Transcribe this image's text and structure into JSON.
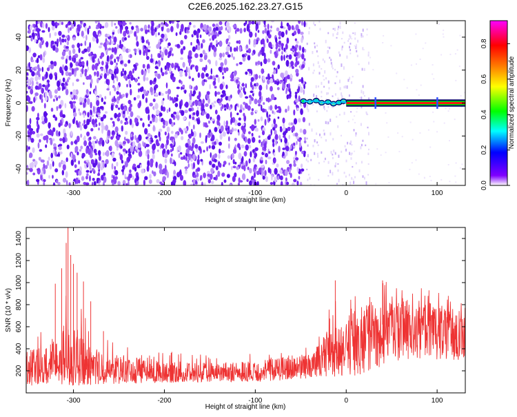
{
  "title": "C2E6.2025.162.23.27.G15",
  "chart_data": [
    {
      "type": "heatmap",
      "xlabel": "Height of straight line (km)",
      "ylabel": "Frequency (Hz)",
      "xlim": [
        -352,
        131
      ],
      "ylim": [
        -50,
        50
      ],
      "xticks": [
        -300,
        -200,
        -100,
        0,
        100
      ],
      "yticks": [
        -40,
        -20,
        0,
        20,
        40
      ],
      "grid": false,
      "noise_region_x": [
        -352,
        -45
      ],
      "signal_trace": {
        "x": [
          -47,
          -40,
          -33,
          -27,
          -20,
          -14,
          -8,
          -3,
          0,
          130
        ],
        "y": [
          1.2,
          0.8,
          1.5,
          0.2,
          0.6,
          -0.4,
          0.3,
          1.1,
          0.0,
          0.0
        ]
      },
      "colorbar": {
        "label": "Normalized spectral amplitude",
        "range": [
          0,
          0.93
        ],
        "ticks": [
          0.0,
          0.2,
          0.4,
          0.6,
          0.8
        ],
        "tick_labels": [
          "0.0",
          "0.2",
          "0.4",
          "0.6",
          "0.8"
        ],
        "colormap": [
          "#ffffff",
          "#8000ff",
          "#0000ff",
          "#00ffff",
          "#00ff00",
          "#ffff00",
          "#ff8000",
          "#ff0000",
          "#ff00ff"
        ]
      }
    },
    {
      "type": "line",
      "xlabel": "Height of straight line (km)",
      "ylabel": "SNR (10 * v/v)",
      "xlim": [
        -352,
        131
      ],
      "ylim": [
        0,
        1500
      ],
      "xticks": [
        -300,
        -200,
        -100,
        0,
        100
      ],
      "yticks": [
        200,
        400,
        600,
        800,
        1000,
        1200,
        1400
      ],
      "grid": false,
      "series": [
        {
          "color": "#ee3333",
          "envelope": {
            "x": [
              -352,
              -330,
              -310,
              -290,
              -270,
              -250,
              -200,
              -150,
              -100,
              -50,
              -30,
              -20,
              -10,
              0,
              20,
              40,
              60,
              80,
              100,
              131
            ],
            "low": [
              60,
              80,
              70,
              60,
              80,
              80,
              90,
              100,
              100,
              120,
              150,
              140,
              120,
              110,
              160,
              250,
              290,
              300,
              300,
              300
            ],
            "typical": [
              190,
              210,
              230,
              230,
              200,
              180,
              170,
              170,
              190,
              240,
              300,
              360,
              400,
              430,
              520,
              620,
              640,
              650,
              610,
              580
            ],
            "high": [
              520,
              620,
              900,
              760,
              520,
              440,
              380,
              340,
              360,
              420,
              520,
              760,
              850,
              920,
              1000,
              1020,
              960,
              960,
              940,
              860
            ]
          },
          "spikes": [
            {
              "x": -320,
              "y": 990
            },
            {
              "x": -313,
              "y": 1130
            },
            {
              "x": -308,
              "y": 1360
            },
            {
              "x": -306,
              "y": 1500
            },
            {
              "x": -303,
              "y": 1250
            },
            {
              "x": -300,
              "y": 1170
            },
            {
              "x": -296,
              "y": 1090
            },
            {
              "x": -289,
              "y": 1010
            },
            {
              "x": -281,
              "y": 830
            },
            {
              "x": -267,
              "y": 560
            },
            {
              "x": -12,
              "y": 1020
            },
            {
              "x": 40,
              "y": 1020
            }
          ]
        }
      ]
    }
  ]
}
